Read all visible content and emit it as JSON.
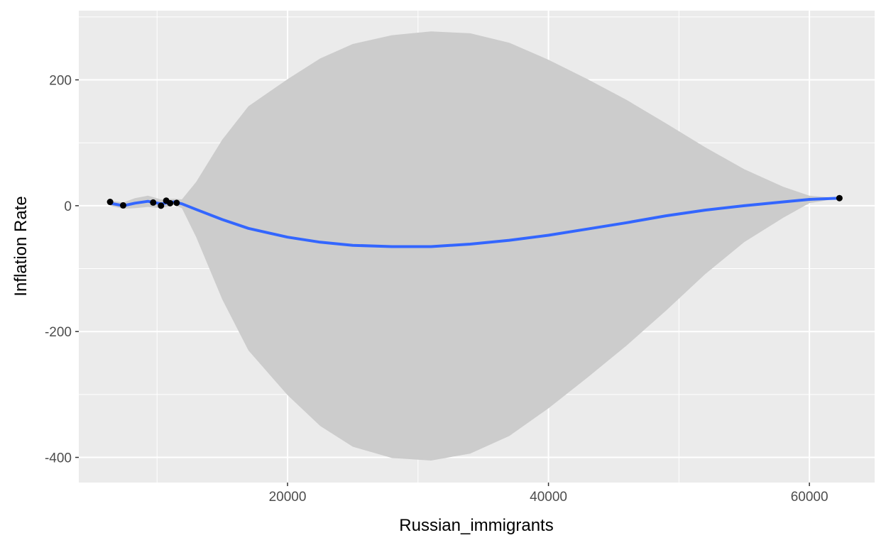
{
  "chart_data": {
    "type": "scatter",
    "xlabel": "Russian_immigrants",
    "ylabel": "Inflation Rate",
    "xlim": [
      4000,
      65000
    ],
    "ylim": [
      -440,
      310
    ],
    "x_ticks": [
      20000,
      40000,
      60000
    ],
    "x_tick_labels": [
      "20000",
      "40000",
      "60000"
    ],
    "y_ticks": [
      -400,
      -200,
      0,
      200
    ],
    "y_tick_labels": [
      "-400",
      "-200",
      "0",
      "200"
    ],
    "grid": true,
    "colors": {
      "panel": "#ebebeb",
      "grid_major": "#ffffff",
      "ribbon": "#cccccc",
      "smooth_line": "#3366ff",
      "points": "#000000",
      "tick_text": "#4d4d4d"
    },
    "points": [
      {
        "x": 6400,
        "y": 6.0
      },
      {
        "x": 7400,
        "y": 0.5
      },
      {
        "x": 9700,
        "y": 5.0
      },
      {
        "x": 10300,
        "y": 0.0
      },
      {
        "x": 10700,
        "y": 8.0
      },
      {
        "x": 11000,
        "y": 4.0
      },
      {
        "x": 11500,
        "y": 4.5
      },
      {
        "x": 62300,
        "y": 12.0
      }
    ],
    "smooth": {
      "x": [
        6400,
        7400,
        8300,
        9300,
        10300,
        11300,
        11900,
        13000,
        15000,
        17000,
        20000,
        22500,
        25000,
        28000,
        31000,
        34000,
        37000,
        40000,
        43000,
        46000,
        49000,
        52000,
        55000,
        58000,
        60000,
        62300
      ],
      "y": [
        4,
        0,
        4,
        7,
        3,
        6,
        3,
        -6,
        -22,
        -36,
        -50,
        -58,
        -63,
        -65,
        -65,
        -61,
        -55,
        -47,
        -37,
        -27,
        -16,
        -7,
        0,
        6,
        10,
        12
      ],
      "upper": [
        8,
        5,
        12,
        16,
        10,
        11,
        10,
        38,
        105,
        158,
        201,
        234,
        257,
        271,
        277,
        274,
        259,
        232,
        201,
        168,
        131,
        93,
        58,
        30,
        16,
        12
      ],
      "lower": [
        0,
        -5,
        -4,
        -2,
        -4,
        1,
        -4,
        -50,
        -149,
        -230,
        -301,
        -350,
        -383,
        -401,
        -405,
        -394,
        -366,
        -322,
        -273,
        -222,
        -167,
        -109,
        -58,
        -19,
        4,
        12
      ]
    }
  }
}
